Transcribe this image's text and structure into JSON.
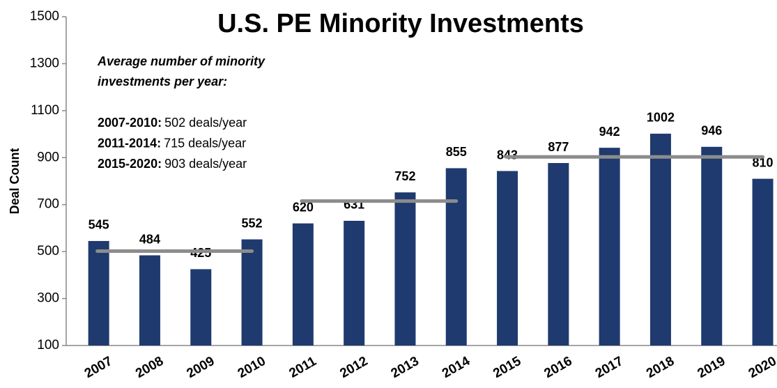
{
  "chart_data": {
    "type": "bar",
    "title": "U.S. PE Minority Investments",
    "y_label": "Deal Count",
    "categories": [
      "2007",
      "2008",
      "2009",
      "2010",
      "2011",
      "2012",
      "2013",
      "2014",
      "2015",
      "2016",
      "2017",
      "2018",
      "2019",
      "2020"
    ],
    "values": [
      545,
      484,
      425,
      552,
      620,
      631,
      752,
      855,
      843,
      877,
      942,
      1002,
      946,
      810
    ],
    "color": "#1f3a6e",
    "ylim": [
      100,
      1500
    ],
    "yticks": [
      100,
      300,
      500,
      700,
      900,
      1100,
      1300,
      1500
    ],
    "annotation": [
      "Average number of minority",
      "investments per year:"
    ],
    "averages": [
      {
        "period": "2007-2010:",
        "value": 502,
        "label": "502 deals/year"
      },
      {
        "period": "2011-2014:",
        "value": 715,
        "label": "715 deals/year"
      },
      {
        "period": "2015-2020:",
        "value": 903,
        "label": "903 deals/year"
      }
    ],
    "average_color": "#8c8c8c"
  }
}
